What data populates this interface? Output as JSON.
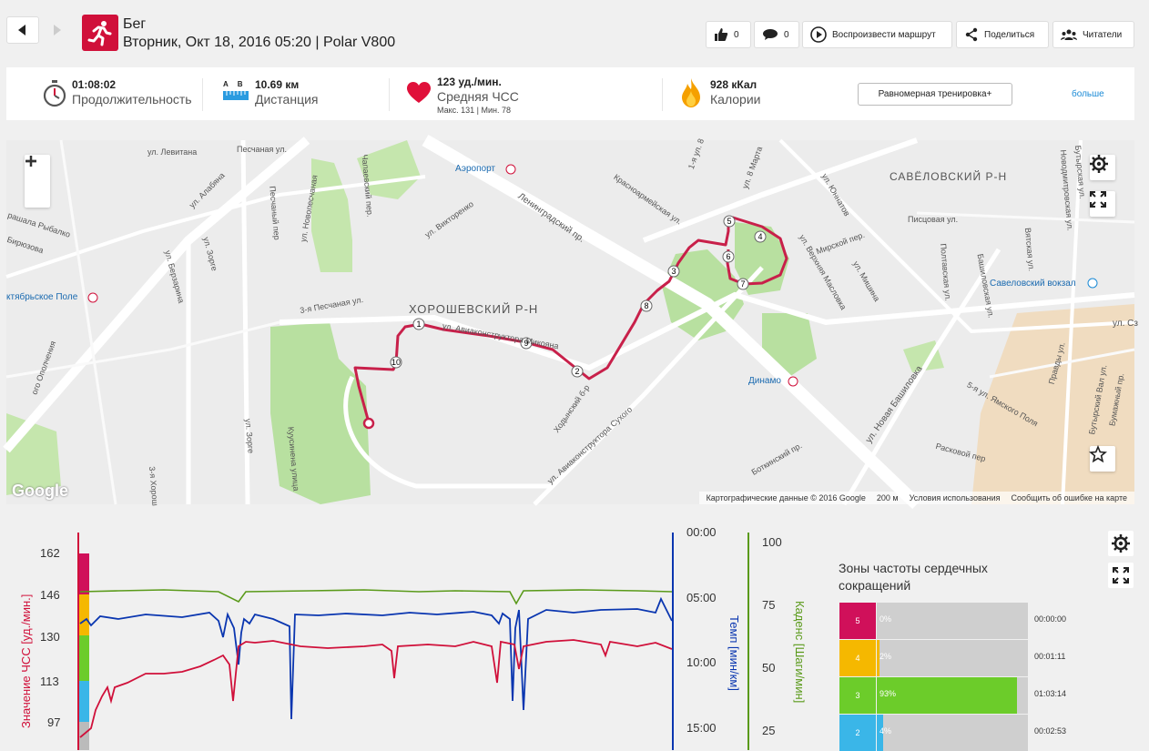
{
  "header": {
    "sport": "Бег",
    "meta": "Вторник, Окт 18, 2016 05:20 | Polar V800",
    "likes": "0",
    "comments": "0",
    "replay": "Воспроизвести маршрут",
    "share": "Поделиться",
    "readers": "Читатели"
  },
  "summary": {
    "duration_value": "01:08:02",
    "duration_label": "Продолжительность",
    "ab_a": "A",
    "ab_b": "B",
    "distance_value": "10.69 км",
    "distance_label": "Дистанция",
    "hr_value": "123 уд./мин.",
    "hr_label": "Средняя ЧСС",
    "hr_sub": "Макс. 131  |  Мин. 78",
    "cal_value": "928 кКал",
    "cal_label": "Калории",
    "training_type": "Равномерная тренировка+",
    "more": "больше"
  },
  "map": {
    "district_main": "ХОРОШЕВСКИЙ Р-Н",
    "district_2": "САВЁЛОВСКИЙ Р-Н",
    "airport": "Аэропорт",
    "dinamo": "Динамо",
    "savelovsky_station": "Савеловский вокзал",
    "oktyabrskoe_pole": "ктябрьское Поле",
    "google": "Google",
    "copyright": "Картографические данные © 2016 Google",
    "scale": "200 м",
    "terms": "Условия использования",
    "report": "Сообщить об ошибке на карте",
    "streets": {
      "levitana": "ул. Левитана",
      "alabyana": "ул. Алабяна",
      "peschanaya_ul": "Песчаная ул.",
      "peschany_per": "Песчаный пер",
      "novopeschanaya": "ул. Новопесчаная",
      "chapaevsky": "Чапаевский пер.",
      "viktorenko": "ул. Викторенко",
      "leningradsky": "Ленинградский пр.",
      "krasnoarmeyskaya": "Красноармейская ул.",
      "rybalko": "рашала Рыбалко",
      "birizova": "Бирюзова",
      "berzarina": "ул. Берзарина",
      "zorge": "ул. Зорге",
      "zorge2": "ул. Зорге",
      "peschanaya3": "3-я Песчаная ул.",
      "aviakonstruktora": "ул. Авиаконструктора Микояна",
      "khodynsky": "Ходынский б-р",
      "sukhogo": "ул. Авиаконструктора Сухого",
      "kusinena": "Куусинена улица",
      "opolcheniya": "ого Ополчения",
      "yunnatov": "ул. Юннатов",
      "verkhnyaya_maslovka": "ул. Верхняя Масловка",
      "mirskoy": "Мирской пер.",
      "mishina": "ул. Мишина",
      "pistsovaya": "Писцовая ул.",
      "poltavskaya": "Полтавская ул.",
      "bashilovskaya": "Башиловская ул.",
      "vyatskaya": "Вятская ул.",
      "novaya_bashilovka": "ул. Новая Башиловка",
      "raskovoy": "Расковой пер",
      "botkinsky": "Боткинский пр.",
      "yamskogo": "5-я ул. Ямского Поля",
      "pravdy": "Правды ул.",
      "butyrsky_val": "Бутырский Вал ул.",
      "bumazhny": "Бумажный пр.",
      "kutuzova": "ул. Сз",
      "khoroshevo3": "3-я Хорош",
      "mart8": "ул. 8 Марта",
      "mart8_1": "1-я ул. 8",
      "novodmitrovskaya": "Новодмитровская ул.",
      "butyrskaya": "Бутырская ул."
    }
  },
  "chart": {
    "left_axis_title": "Значение ЧСС [уд./мин.]",
    "left_ticks": [
      "162",
      "146",
      "130",
      "113",
      "97"
    ],
    "mid_axis_title": "Темп [мин/км]",
    "mid_ticks": [
      "00:00",
      "05:00",
      "10:00",
      "15:00"
    ],
    "right_axis_title": "Каденс [Шаги/мин]",
    "right_ticks": [
      "100",
      "75",
      "50",
      "25"
    ]
  },
  "zones": {
    "title": "Зоны частоты сердечных сокращений",
    "items": [
      {
        "zone": "5",
        "pct": "0%",
        "time": "00:00:00",
        "color": "#d0105a",
        "fill": 0.0
      },
      {
        "zone": "4",
        "pct": "2%",
        "time": "00:01:11",
        "color": "#f5b800",
        "fill": 0.02
      },
      {
        "zone": "3",
        "pct": "93%",
        "time": "01:03:14",
        "color": "#6ccc2a",
        "fill": 0.93
      },
      {
        "zone": "2",
        "pct": "4%",
        "time": "00:02:53",
        "color": "#3ab6e8",
        "fill": 0.04
      }
    ]
  },
  "colors": {
    "brand": "#d0103a",
    "hr_line": "#d0103a",
    "pace_line": "#0a36b0",
    "cadence_line": "#5a9a1a",
    "route": "#c8204a",
    "link": "#1a8ad6"
  }
}
